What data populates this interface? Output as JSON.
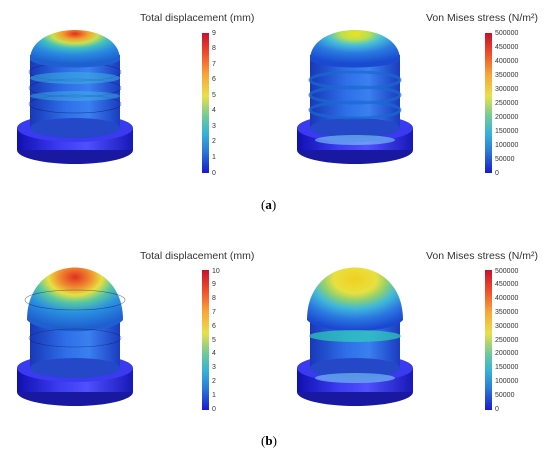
{
  "panels": [
    {
      "caption": "a",
      "displacement": {
        "title": "Total displacement (mm)",
        "ticks": [
          "9",
          "8",
          "7",
          "6",
          "5",
          "4",
          "3",
          "2",
          "1",
          "0"
        ],
        "colormap": [
          "#d7191c",
          "#f46d43",
          "#fdae61",
          "#e6e640",
          "#66c2a5",
          "#3ab0dd",
          "#2b83ba",
          "#1f5fd6",
          "#1a2bd6"
        ]
      },
      "stress": {
        "title": "Von Mises stress (N/m²)",
        "ticks": [
          "500000",
          "450000",
          "400000",
          "350000",
          "300000",
          "250000",
          "200000",
          "150000",
          "100000",
          "50000",
          "0"
        ]
      }
    },
    {
      "caption": "b",
      "displacement": {
        "title": "Total displacement (mm)",
        "ticks": [
          "10",
          "9",
          "8",
          "7",
          "6",
          "5",
          "4",
          "3",
          "2",
          "1",
          "0"
        ]
      },
      "stress": {
        "title": "Von Mises stress (N/m²)",
        "ticks": [
          "500000",
          "450000",
          "400000",
          "350000",
          "300000",
          "250000",
          "200000",
          "150000",
          "100000",
          "50000",
          "0"
        ]
      }
    }
  ]
}
